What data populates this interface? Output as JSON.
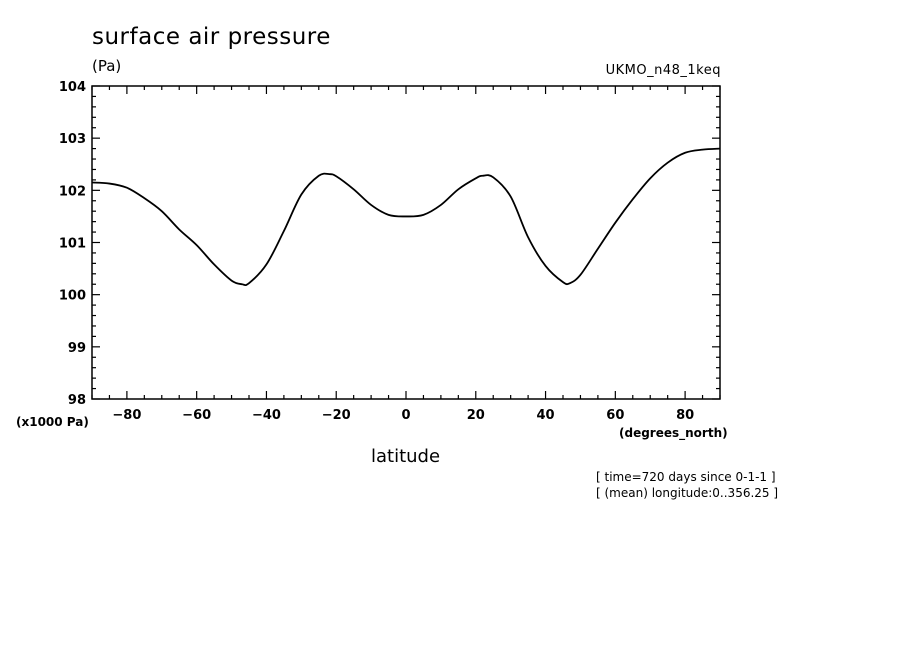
{
  "chart_data": {
    "type": "line",
    "title": "surface air pressure",
    "units_label": "(Pa)",
    "model_label": "UKMO_n48_1keq",
    "y_scale_label": "(x1000 Pa)",
    "xlabel": "latitude",
    "x_units_label": "(degrees_north)",
    "xlim": [
      -90,
      90
    ],
    "ylim": [
      98,
      104
    ],
    "x_ticks": [
      -80,
      -60,
      -40,
      -20,
      0,
      20,
      40,
      60,
      80
    ],
    "y_ticks": [
      98,
      99,
      100,
      101,
      102,
      103,
      104
    ],
    "series": [
      {
        "name": "surface air pressure",
        "x": [
          -90,
          -85,
          -80,
          -75,
          -70,
          -65,
          -60,
          -55,
          -50,
          -47,
          -45,
          -40,
          -35,
          -30,
          -25,
          -22,
          -20,
          -15,
          -10,
          -5,
          0,
          5,
          10,
          15,
          20,
          22,
          25,
          30,
          35,
          40,
          45,
          47,
          50,
          55,
          60,
          65,
          70,
          75,
          80,
          85,
          90
        ],
        "values": [
          102.15,
          102.13,
          102.05,
          101.85,
          101.6,
          101.25,
          100.95,
          100.58,
          100.27,
          100.2,
          100.22,
          100.58,
          101.22,
          101.92,
          102.28,
          102.31,
          102.27,
          102.02,
          101.72,
          101.53,
          101.5,
          101.53,
          101.72,
          102.02,
          102.23,
          102.28,
          102.25,
          101.88,
          101.1,
          100.55,
          100.24,
          100.22,
          100.38,
          100.88,
          101.38,
          101.83,
          102.23,
          102.53,
          102.72,
          102.78,
          102.8
        ]
      }
    ]
  },
  "footer": {
    "time_note": "[ time=720 days since 0-1-1 ]",
    "longitude_note": "[ (mean) longitude:0..356.25 ]"
  }
}
